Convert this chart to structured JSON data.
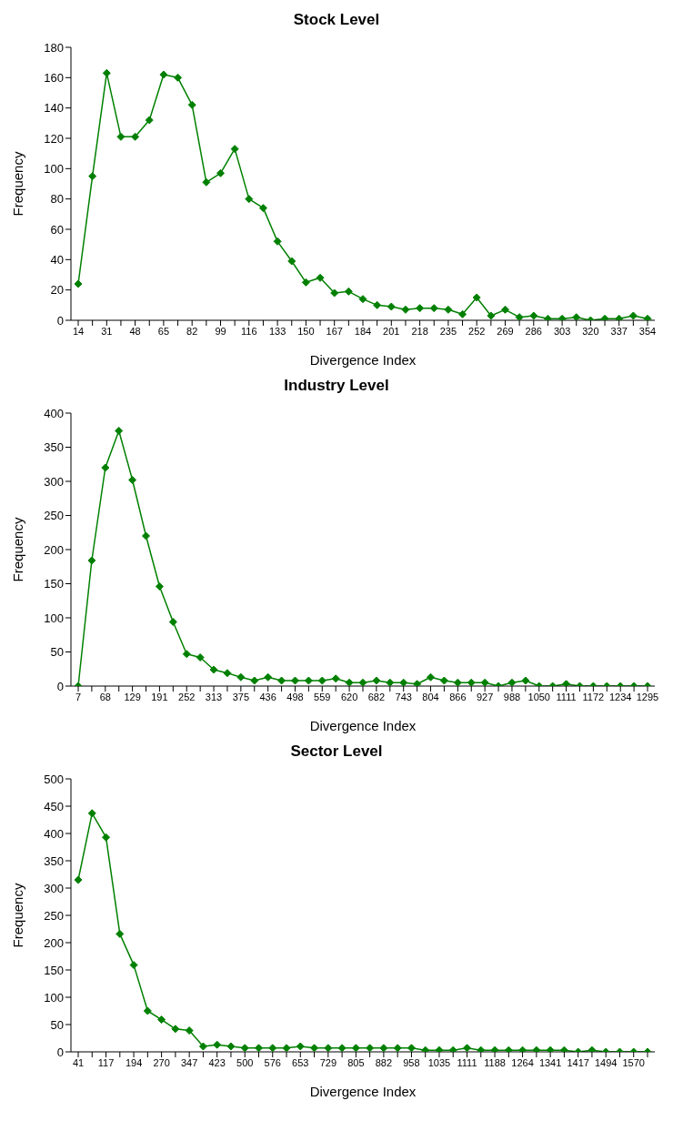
{
  "chart_data": [
    {
      "type": "line",
      "title": "Stock Level",
      "xlabel": "Divergence Index",
      "ylabel": "Frequency",
      "color": "#008000",
      "marker": "diamond",
      "grid": false,
      "legend": false,
      "ylim": [
        0,
        180
      ],
      "yticks": [
        0,
        20,
        40,
        60,
        80,
        100,
        120,
        140,
        160,
        180
      ],
      "categories": [
        "14",
        null,
        "31",
        null,
        "48",
        null,
        "65",
        null,
        "82",
        null,
        "99",
        null,
        "116",
        null,
        "133",
        null,
        "150",
        null,
        "167",
        null,
        "184",
        null,
        "201",
        null,
        "218",
        null,
        "235",
        null,
        "252",
        null,
        "269",
        null,
        "286",
        null,
        "303",
        null,
        "320",
        null,
        "337",
        null,
        "354"
      ],
      "values": [
        24,
        95,
        163,
        121,
        121,
        132,
        162,
        160,
        142,
        91,
        97,
        113,
        80,
        74,
        52,
        39,
        25,
        28,
        18,
        19,
        14,
        10,
        9,
        7,
        8,
        8,
        7,
        4,
        15,
        3,
        7,
        2,
        3,
        1,
        1,
        2,
        0,
        1,
        1,
        3,
        1
      ]
    },
    {
      "type": "line",
      "title": "Industry Level",
      "xlabel": "Divergence Index",
      "ylabel": "Frequency",
      "color": "#008000",
      "marker": "diamond",
      "grid": false,
      "legend": false,
      "ylim": [
        0,
        400
      ],
      "yticks": [
        0,
        50,
        100,
        150,
        200,
        250,
        300,
        350,
        400
      ],
      "categories": [
        "7",
        null,
        "68",
        null,
        "129",
        null,
        "191",
        null,
        "252",
        null,
        "313",
        null,
        "375",
        null,
        "436",
        null,
        "498",
        null,
        "559",
        null,
        "620",
        null,
        "682",
        null,
        "743",
        null,
        "804",
        null,
        "866",
        null,
        "927",
        null,
        "988",
        null,
        "1050",
        null,
        "1111",
        null,
        "1172",
        null,
        "1234",
        null,
        "1295"
      ],
      "values": [
        0,
        184,
        320,
        374,
        302,
        220,
        146,
        94,
        47,
        42,
        24,
        19,
        13,
        8,
        13,
        8,
        8,
        8,
        8,
        11,
        5,
        5,
        8,
        5,
        5,
        3,
        13,
        8,
        5,
        5,
        5,
        0,
        5,
        8,
        0,
        0,
        3,
        0,
        0,
        0,
        0,
        0,
        0
      ]
    },
    {
      "type": "line",
      "title": "Sector Level",
      "xlabel": "Divergence Index",
      "ylabel": "Frequency",
      "color": "#008000",
      "marker": "diamond",
      "grid": false,
      "legend": false,
      "ylim": [
        0,
        500
      ],
      "yticks": [
        0,
        50,
        100,
        150,
        200,
        250,
        300,
        350,
        400,
        450,
        500
      ],
      "categories": [
        "41",
        null,
        "117",
        null,
        "194",
        null,
        "270",
        null,
        "347",
        null,
        "423",
        null,
        "500",
        null,
        "576",
        null,
        "653",
        null,
        "729",
        null,
        "805",
        null,
        "882",
        null,
        "958",
        null,
        "1035",
        null,
        "1111",
        null,
        "1188",
        null,
        "1264",
        null,
        "1341",
        null,
        "1417",
        null,
        "1494",
        null,
        "1570",
        null
      ],
      "values": [
        315,
        437,
        393,
        216,
        159,
        75,
        59,
        42,
        39,
        10,
        13,
        10,
        7,
        7,
        7,
        7,
        10,
        7,
        7,
        7,
        7,
        7,
        7,
        7,
        7,
        3,
        3,
        3,
        7,
        3,
        3,
        3,
        3,
        3,
        3,
        3,
        0,
        3,
        0,
        0,
        0,
        0
      ]
    }
  ]
}
